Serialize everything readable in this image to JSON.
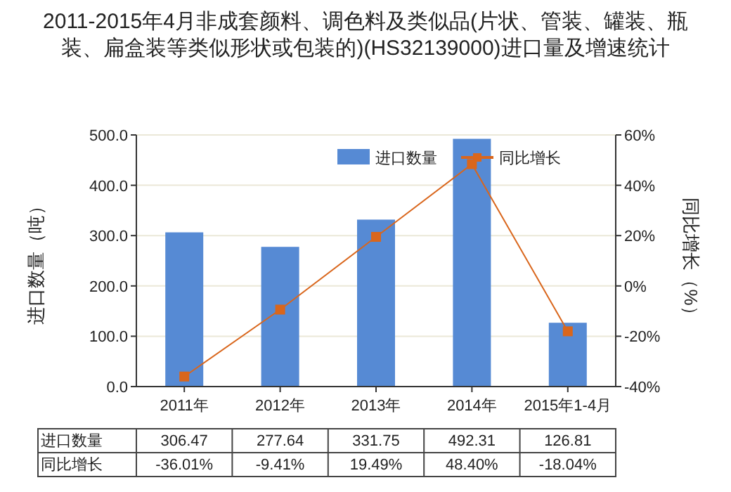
{
  "chart_data": {
    "type": "bar",
    "title": "2011-2015年4月非成套颜料、调色料及类似品(片状、管装、罐装、瓶装、扁盒装等类似形状或包装的)(HS32139000)进口量及增速统计",
    "ylabel": "进口数量（吨）",
    "y2label": "同比增长（%）",
    "categories": [
      "2011年",
      "2012年",
      "2013年",
      "2014年",
      "2015年1-4月"
    ],
    "series": [
      {
        "name": "进口数量",
        "color": "#568ad4",
        "values": [
          306.47,
          277.64,
          331.75,
          492.31,
          126.81
        ],
        "value_labels": [
          "306.47",
          "277.64",
          "331.75",
          "492.31",
          "126.81"
        ]
      },
      {
        "name": "同比增长",
        "type": "line",
        "axis": "y2",
        "color": "#d9661c",
        "marker": "square",
        "values": [
          -36.01,
          -9.41,
          19.49,
          48.4,
          -18.04
        ],
        "value_labels": [
          "-36.01%",
          "-9.41%",
          "19.49%",
          "48.40%",
          "-18.04%"
        ]
      }
    ],
    "ylim": [
      0,
      500
    ],
    "yticks": [
      {
        "value": 0,
        "label": "0.0"
      },
      {
        "value": 100,
        "label": "100.0"
      },
      {
        "value": 200,
        "label": "200.0"
      },
      {
        "value": 300,
        "label": "300.0"
      },
      {
        "value": 400,
        "label": "400.0"
      },
      {
        "value": 500,
        "label": "500.0"
      }
    ],
    "y2lim": [
      -40,
      60
    ],
    "y2ticks": [
      {
        "value": -40,
        "label": "-40%"
      },
      {
        "value": -20,
        "label": "-20%"
      },
      {
        "value": 0,
        "label": "0%"
      },
      {
        "value": 20,
        "label": "20%"
      },
      {
        "value": 40,
        "label": "40%"
      },
      {
        "value": 60,
        "label": "60%"
      }
    ],
    "grid": "y",
    "legend": "top right"
  }
}
